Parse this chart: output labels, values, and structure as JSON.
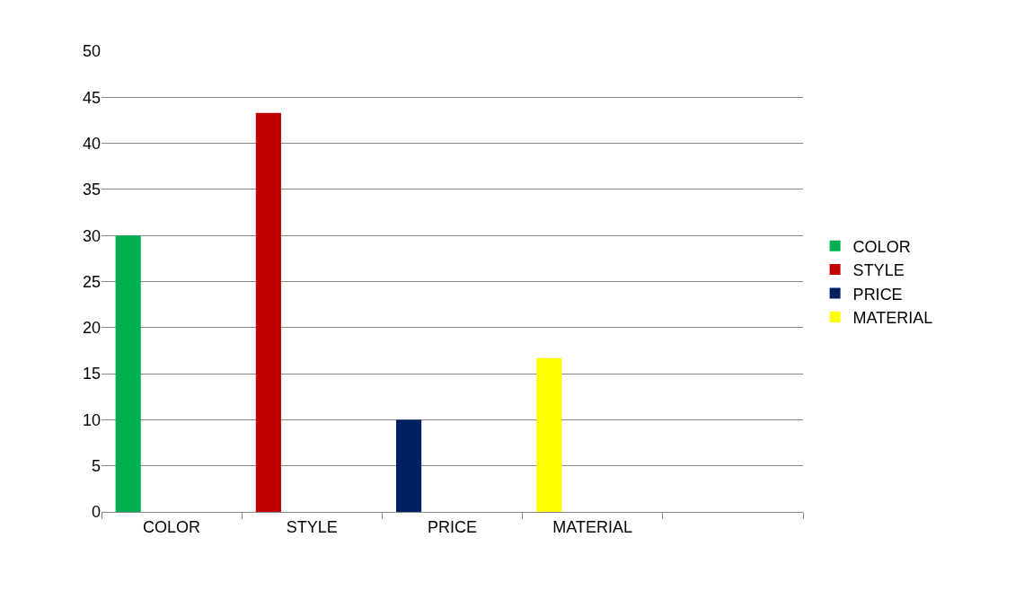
{
  "chart_data": {
    "type": "bar",
    "categories": [
      "COLOR",
      "STYLE",
      "PRICE",
      "MATERIAL",
      null
    ],
    "series": [
      {
        "name": "COLOR",
        "color": "#00b050",
        "values": [
          30,
          null,
          null,
          null,
          null
        ]
      },
      {
        "name": "STYLE",
        "color": "#c00000",
        "values": [
          null,
          43.3,
          null,
          null,
          null
        ]
      },
      {
        "name": "PRICE",
        "color": "#002060",
        "values": [
          null,
          null,
          10,
          null,
          null
        ]
      },
      {
        "name": "MATERIAL",
        "color": "#ffff00",
        "values": [
          null,
          null,
          null,
          16.7,
          null
        ]
      }
    ],
    "ylim": [
      0,
      50
    ],
    "yticks": [
      0,
      5,
      10,
      15,
      20,
      25,
      30,
      35,
      40,
      45,
      50
    ],
    "grid": "y",
    "legend": "right"
  }
}
